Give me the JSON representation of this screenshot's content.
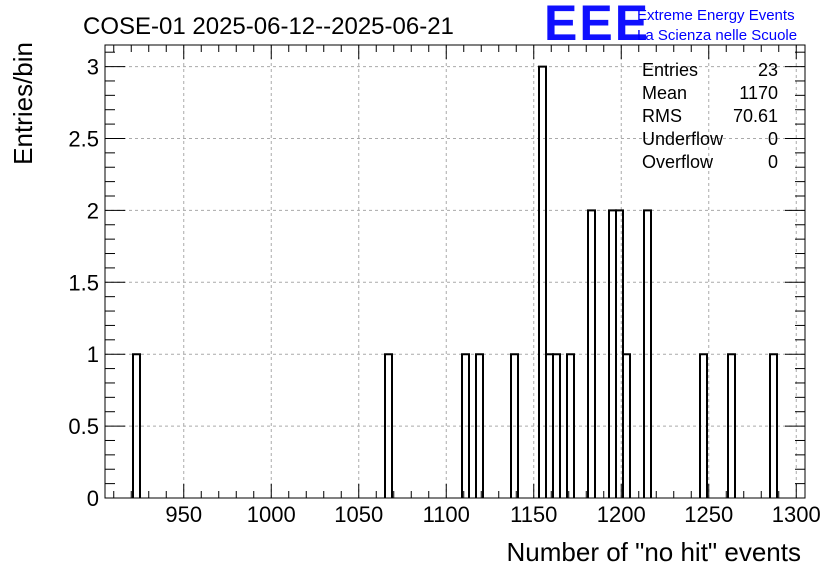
{
  "title": "COSE-01 2025-06-12--2025-06-21",
  "logo": {
    "mark": "EEE",
    "line1": "Extreme Energy Events",
    "line2": "La Scienza nelle Scuole",
    "color": "#1010ff"
  },
  "stats": [
    {
      "label": "Entries",
      "value": "23"
    },
    {
      "label": "Mean",
      "value": "1170"
    },
    {
      "label": "RMS",
      "value": "70.61"
    },
    {
      "label": "Underflow",
      "value": "0"
    },
    {
      "label": "Overflow",
      "value": "0"
    }
  ],
  "chart_data": {
    "type": "histogram",
    "xlabel": "Number of \"no hit\" events",
    "ylabel": "Entries/bin",
    "xlim": [
      905,
      1305
    ],
    "ylim": [
      0,
      3.15
    ],
    "grid": true,
    "bin_width": 4,
    "x_ticks": [
      950,
      1000,
      1050,
      1100,
      1150,
      1200,
      1250,
      1300
    ],
    "x_tick_labels": [
      "950",
      "1000",
      "1050",
      "1100",
      "1150",
      "1200",
      "1250",
      "1300"
    ],
    "y_ticks": [
      0,
      0.5,
      1,
      1.5,
      2,
      2.5,
      3
    ],
    "y_tick_labels": [
      "0",
      "0.5",
      "1",
      "1.5",
      "2",
      "2.5",
      "3"
    ],
    "bins": [
      {
        "low": 921,
        "high": 925,
        "count": 1
      },
      {
        "low": 1065,
        "high": 1069,
        "count": 1
      },
      {
        "low": 1109,
        "high": 1113,
        "count": 1
      },
      {
        "low": 1117,
        "high": 1121,
        "count": 1
      },
      {
        "low": 1137,
        "high": 1141,
        "count": 1
      },
      {
        "low": 1153,
        "high": 1157,
        "count": 3
      },
      {
        "low": 1157,
        "high": 1161,
        "count": 1
      },
      {
        "low": 1161,
        "high": 1165,
        "count": 1
      },
      {
        "low": 1169,
        "high": 1173,
        "count": 1
      },
      {
        "low": 1181,
        "high": 1185,
        "count": 2
      },
      {
        "low": 1193,
        "high": 1197,
        "count": 2
      },
      {
        "low": 1197,
        "high": 1201,
        "count": 2
      },
      {
        "low": 1201,
        "high": 1205,
        "count": 1
      },
      {
        "low": 1213,
        "high": 1217,
        "count": 2
      },
      {
        "low": 1245,
        "high": 1249,
        "count": 1
      },
      {
        "low": 1261,
        "high": 1265,
        "count": 1
      },
      {
        "low": 1285,
        "high": 1289,
        "count": 1
      }
    ]
  }
}
